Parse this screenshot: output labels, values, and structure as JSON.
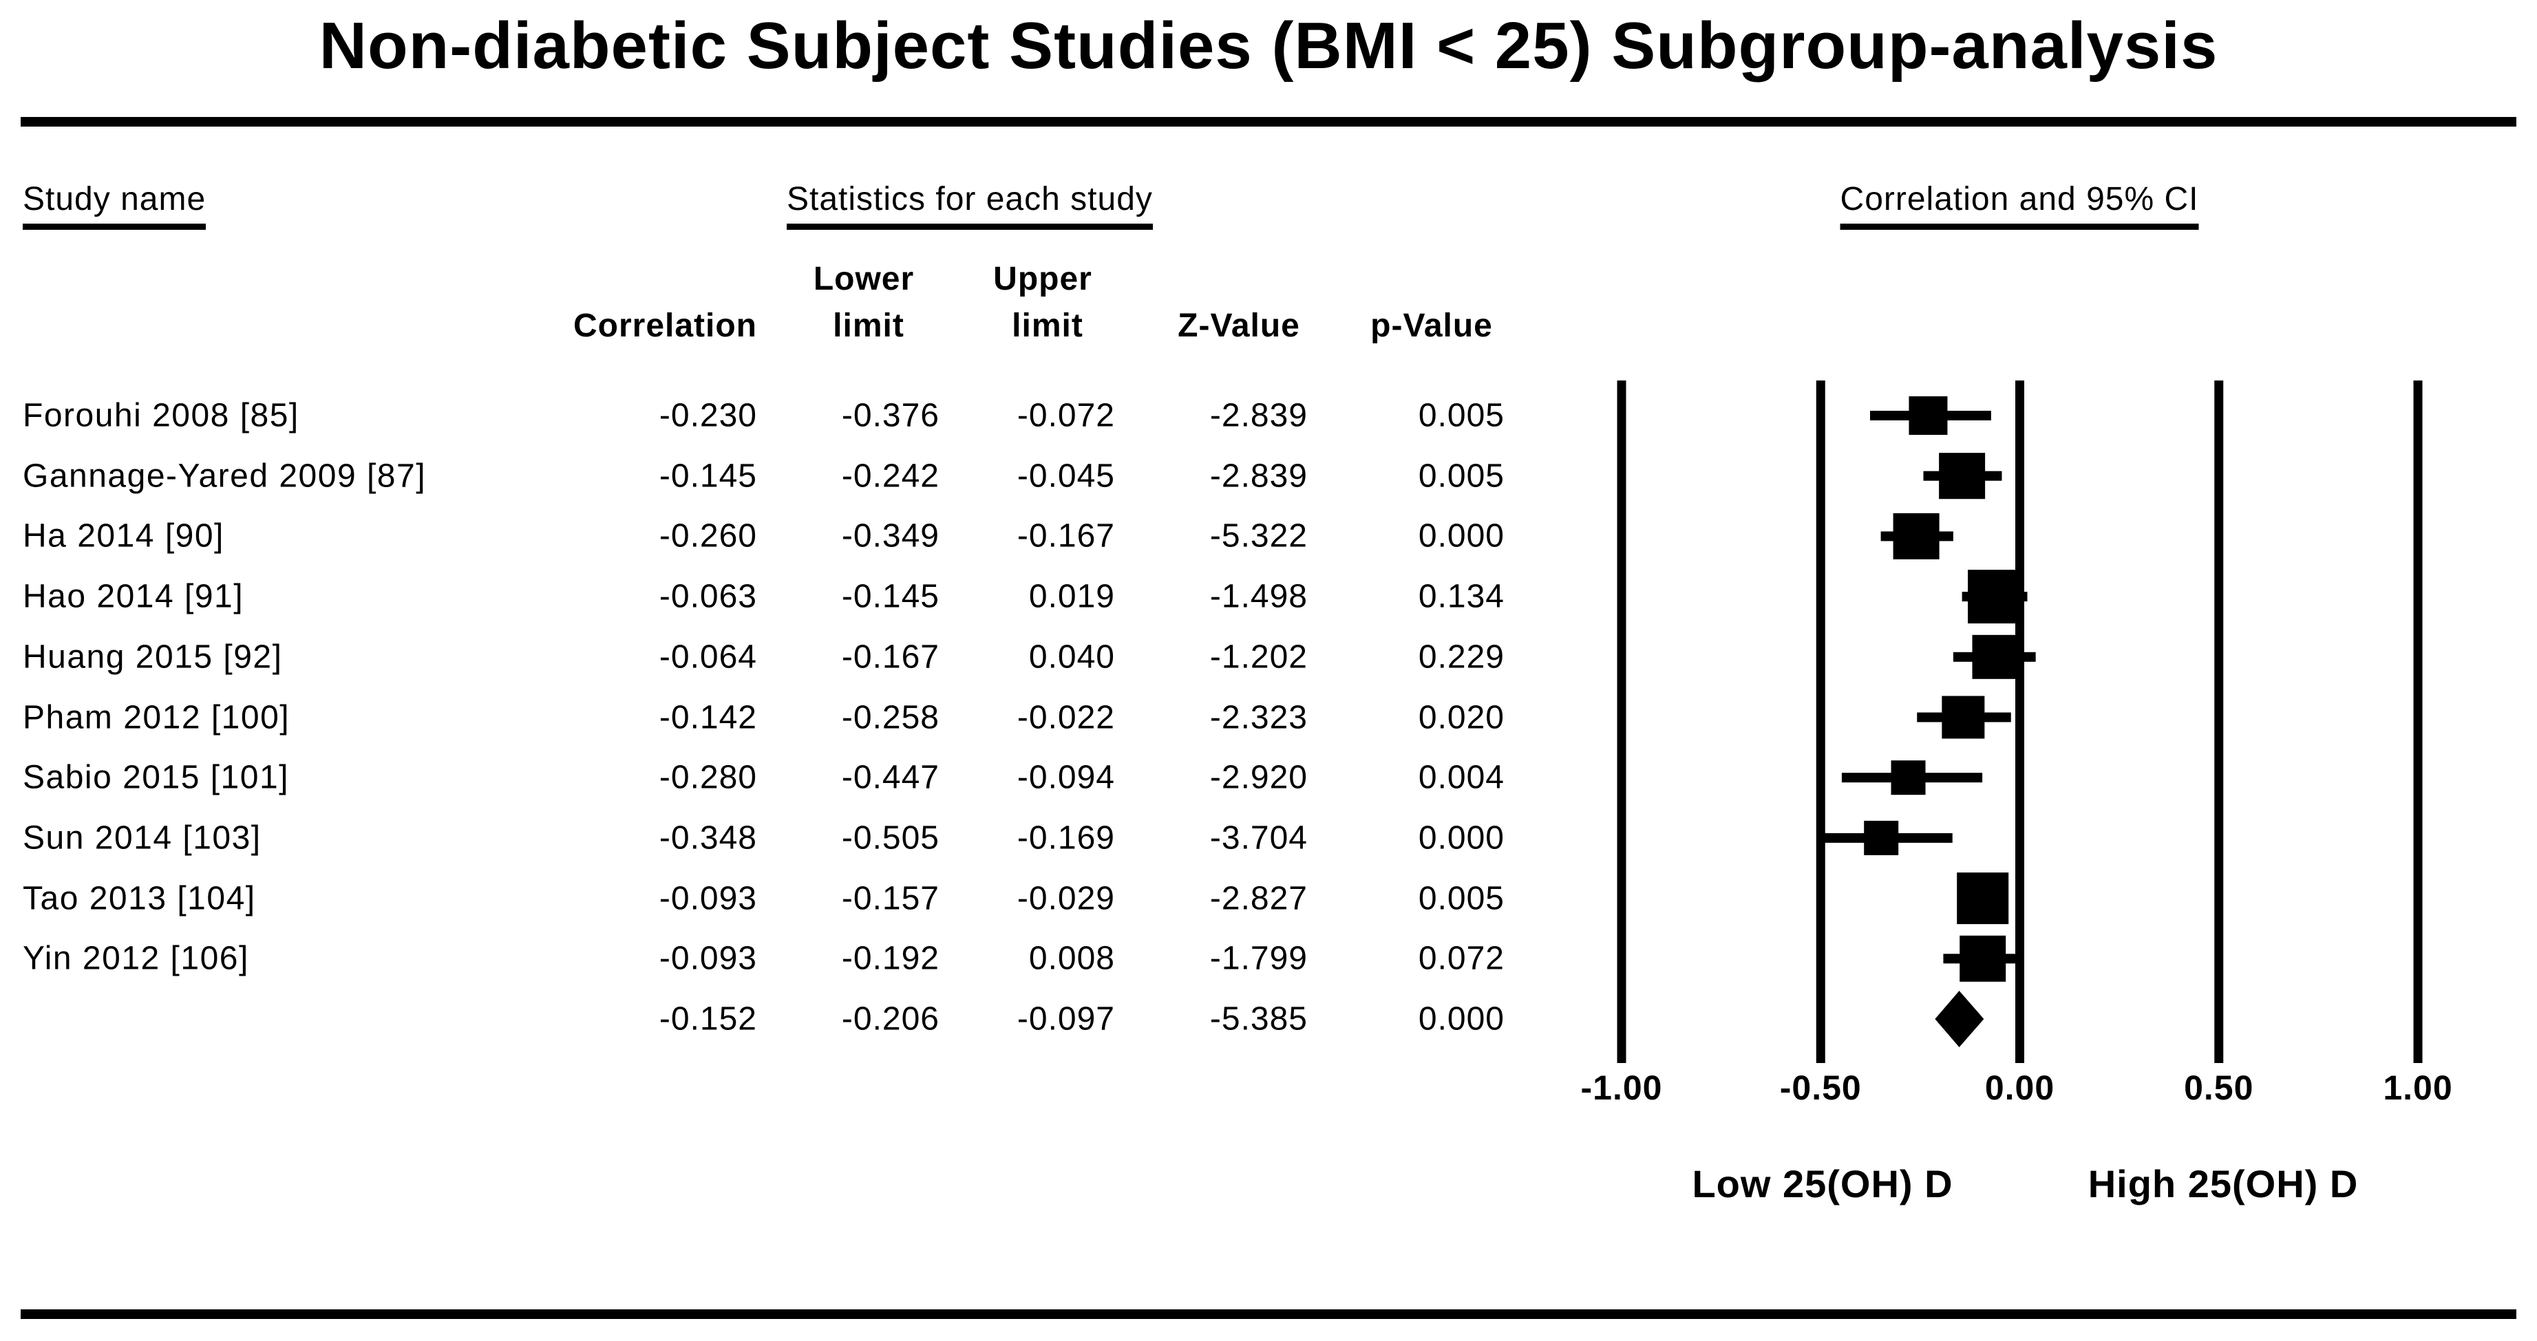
{
  "title": "Non-diabetic Subject Studies (BMI < 25) Subgroup-analysis",
  "section_headers": {
    "study": "Study name",
    "stats": "Statistics for each study",
    "plot": "Correlation and 95% CI"
  },
  "column_headers": {
    "correlation": "Correlation",
    "lower_top": "Lower",
    "lower_bottom": "limit",
    "upper_top": "Upper",
    "upper_bottom": "limit",
    "z": "Z-Value",
    "p": "p-Value"
  },
  "direction_labels": {
    "low": "Low 25(OH) D",
    "high": "High 25(OH) D"
  },
  "colors": {
    "ink": "#000000",
    "background": "#ffffff"
  },
  "chart_data": {
    "type": "forest",
    "xlim": [
      -1,
      1
    ],
    "axis_ticks": [
      {
        "label": "-1.00",
        "value": -1.0
      },
      {
        "label": "-0.50",
        "value": -0.5
      },
      {
        "label": "0.00",
        "value": 0.0
      },
      {
        "label": "0.50",
        "value": 0.5
      },
      {
        "label": "1.00",
        "value": 1.0
      }
    ],
    "grid_lines_at_ticks": true,
    "legend_position": "none",
    "studies": [
      {
        "name": "Forouhi 2008 [85]",
        "correlation": -0.23,
        "lower": -0.376,
        "upper": -0.072,
        "z_value": -2.839,
        "p_value": 0.005,
        "display": [
          "-0.230",
          "-0.376",
          "-0.072",
          "-2.839",
          "0.005"
        ],
        "marker_px": 56
      },
      {
        "name": "Gannage-Yared 2009 [87]",
        "correlation": -0.145,
        "lower": -0.242,
        "upper": -0.045,
        "z_value": -2.839,
        "p_value": 0.005,
        "display": [
          "-0.145",
          "-0.242",
          "-0.045",
          "-2.839",
          "0.005"
        ],
        "marker_px": 67
      },
      {
        "name": "Ha 2014 [90]",
        "correlation": -0.26,
        "lower": -0.349,
        "upper": -0.167,
        "z_value": -5.322,
        "p_value": 0.0,
        "display": [
          "-0.260",
          "-0.349",
          "-0.167",
          "-5.322",
          "0.000"
        ],
        "marker_px": 67
      },
      {
        "name": "Hao 2014 [91]",
        "correlation": -0.063,
        "lower": -0.145,
        "upper": 0.019,
        "z_value": -1.498,
        "p_value": 0.134,
        "display": [
          "-0.063",
          "-0.145",
          "0.019",
          "-1.498",
          "0.134"
        ],
        "marker_px": 78
      },
      {
        "name": "Huang 2015 [92]",
        "correlation": -0.064,
        "lower": -0.167,
        "upper": 0.04,
        "z_value": -1.202,
        "p_value": 0.229,
        "display": [
          "-0.064",
          "-0.167",
          "0.040",
          "-1.202",
          "0.229"
        ],
        "marker_px": 64
      },
      {
        "name": "Pham 2012 [100]",
        "correlation": -0.142,
        "lower": -0.258,
        "upper": -0.022,
        "z_value": -2.323,
        "p_value": 0.02,
        "display": [
          "-0.142",
          "-0.258",
          "-0.022",
          "-2.323",
          "0.020"
        ],
        "marker_px": 62
      },
      {
        "name": "Sabio 2015 [101]",
        "correlation": -0.28,
        "lower": -0.447,
        "upper": -0.094,
        "z_value": -2.92,
        "p_value": 0.004,
        "display": [
          "-0.280",
          "-0.447",
          "-0.094",
          "-2.920",
          "0.004"
        ],
        "marker_px": 50
      },
      {
        "name": "Sun 2014 [103]",
        "correlation": -0.348,
        "lower": -0.505,
        "upper": -0.169,
        "z_value": -3.704,
        "p_value": 0.0,
        "display": [
          "-0.348",
          "-0.505",
          "-0.169",
          "-3.704",
          "0.000"
        ],
        "marker_px": 50
      },
      {
        "name": "Tao 2013 [104]",
        "correlation": -0.093,
        "lower": -0.157,
        "upper": -0.029,
        "z_value": -2.827,
        "p_value": 0.005,
        "display": [
          "-0.093",
          "-0.157",
          "-0.029",
          "-2.827",
          "0.005"
        ],
        "marker_px": 75
      },
      {
        "name": "Yin 2012 [106]",
        "correlation": -0.093,
        "lower": -0.192,
        "upper": 0.008,
        "z_value": -1.799,
        "p_value": 0.072,
        "display": [
          "-0.093",
          "-0.192",
          "0.008",
          "-1.799",
          "0.072"
        ],
        "marker_px": 67
      }
    ],
    "pooled": {
      "correlation": -0.152,
      "lower": -0.206,
      "upper": -0.097,
      "z_value": -5.385,
      "p_value": 0.0,
      "display": [
        "-0.152",
        "-0.206",
        "-0.097",
        "-5.385",
        "0.000"
      ]
    }
  }
}
